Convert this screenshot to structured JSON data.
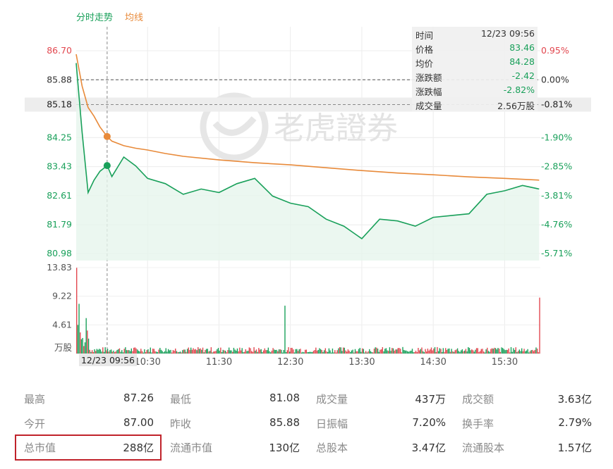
{
  "legend": {
    "price_label": "分时走势",
    "avg_label": "均线"
  },
  "watermark": "老虎證券",
  "colors": {
    "price": "#19a05a",
    "avg": "#e88a3a",
    "up": "#e2474f",
    "down": "#19a05a",
    "neutral": "#333333",
    "highlight_box": "#c0232b"
  },
  "tooltip": {
    "rows": [
      {
        "label": "时间",
        "value": "12/23 09:56"
      },
      {
        "label": "价格",
        "value": "83.46"
      },
      {
        "label": "均价",
        "value": "84.28"
      },
      {
        "label": "涨跌额",
        "value": "-2.42"
      },
      {
        "label": "涨跌幅",
        "value": "-2.82%"
      },
      {
        "label": "成交量",
        "value": "2.56万股"
      }
    ]
  },
  "chart_data": {
    "type": "line",
    "prev_close": 85.88,
    "y_ticks_left": [
      "86.70",
      "85.88",
      "85.18",
      "84.25",
      "83.43",
      "82.61",
      "81.79",
      "80.98"
    ],
    "y_ticks_right": [
      "0.95%",
      "0.00%",
      "-0.81%",
      "-1.90%",
      "-2.85%",
      "-3.81%",
      "-4.76%",
      "-5.71%"
    ],
    "crosshair_price_label": "85.18",
    "crosshair_pct_label": "-0.81%",
    "crosshair_time_label": "12/23 09:56",
    "ylim": [
      80.98,
      86.7
    ],
    "x_ticks": [
      "10:30",
      "11:30",
      "12:30",
      "13:30",
      "14:30",
      "15:30"
    ],
    "volume_ticks": [
      "13.83",
      "9.22",
      "4.61",
      "万股"
    ],
    "series": [
      {
        "name": "分时走势",
        "x": [
          "09:30",
          "09:35",
          "09:40",
          "09:45",
          "09:50",
          "09:56",
          "10:00",
          "10:10",
          "10:20",
          "10:30",
          "10:45",
          "11:00",
          "11:15",
          "11:30",
          "11:45",
          "12:00",
          "12:15",
          "12:30",
          "12:45",
          "13:00",
          "13:15",
          "13:30",
          "13:45",
          "14:00",
          "14:15",
          "14:30",
          "14:45",
          "15:00",
          "15:15",
          "15:30",
          "15:45",
          "15:59"
        ],
        "values": [
          86.35,
          84.4,
          82.7,
          83.05,
          83.3,
          83.46,
          83.15,
          83.7,
          83.45,
          83.1,
          82.95,
          82.65,
          82.8,
          82.7,
          82.95,
          83.1,
          82.6,
          82.4,
          82.3,
          81.95,
          81.75,
          81.4,
          81.95,
          81.9,
          81.75,
          82.0,
          82.05,
          82.1,
          82.65,
          82.75,
          82.9,
          82.8
        ]
      },
      {
        "name": "均线",
        "x": [
          "09:30",
          "09:35",
          "09:40",
          "09:45",
          "09:50",
          "09:56",
          "10:00",
          "10:10",
          "10:20",
          "10:30",
          "10:45",
          "11:00",
          "11:30",
          "12:00",
          "12:30",
          "13:00",
          "13:30",
          "14:00",
          "14:30",
          "15:00",
          "15:30",
          "15:59"
        ],
        "values": [
          86.6,
          85.7,
          85.1,
          84.85,
          84.55,
          84.28,
          84.15,
          84.02,
          83.95,
          83.9,
          83.8,
          83.72,
          83.62,
          83.54,
          83.48,
          83.4,
          83.32,
          83.25,
          83.2,
          83.14,
          83.1,
          83.05
        ]
      }
    ],
    "volume": {
      "ylim": [
        0,
        13.83
      ],
      "values_first": [
        13.8,
        4.6,
        8.0,
        3.4,
        2.3,
        2.5,
        1.2,
        1.8,
        5.7,
        3.7,
        2.4
      ],
      "spike_mid": 7.7,
      "spike_end": 9.0
    }
  },
  "stats": [
    {
      "label": "最高",
      "value": "87.26"
    },
    {
      "label": "最低",
      "value": "81.08"
    },
    {
      "label": "成交量",
      "value": "437万"
    },
    {
      "label": "成交额",
      "value": "3.63亿"
    },
    {
      "label": "今开",
      "value": "87.00"
    },
    {
      "label": "昨收",
      "value": "85.88"
    },
    {
      "label": "日振幅",
      "value": "7.20%"
    },
    {
      "label": "换手率",
      "value": "2.79%"
    },
    {
      "label": "总市值",
      "value": "288亿"
    },
    {
      "label": "流通市值",
      "value": "130亿"
    },
    {
      "label": "总股本",
      "value": "3.47亿"
    },
    {
      "label": "流通股本",
      "value": "1.57亿"
    }
  ]
}
